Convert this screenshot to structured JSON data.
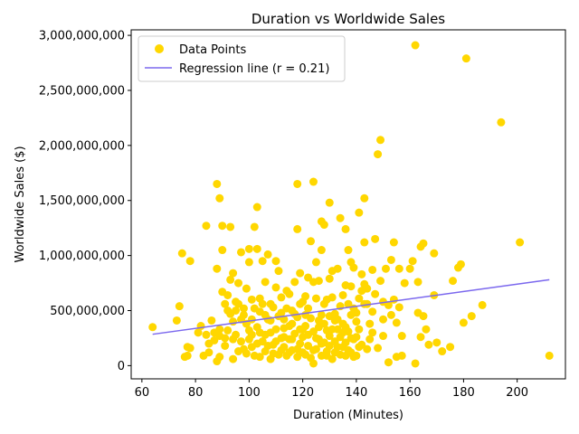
{
  "chart_data": {
    "type": "scatter",
    "title": "Duration vs Worldwide Sales",
    "xlabel": "Duration (Minutes)",
    "ylabel": "Worldwide Sales ($)",
    "xlim": [
      56,
      218
    ],
    "ylim": [
      -120000000,
      3050000000
    ],
    "xticks": [
      60,
      80,
      100,
      120,
      140,
      160,
      180,
      200
    ],
    "xtick_labels": [
      "60",
      "80",
      "100",
      "120",
      "140",
      "160",
      "180",
      "200"
    ],
    "yticks": [
      0,
      500000000,
      1000000000,
      1500000000,
      2000000000,
      2500000000,
      3000000000
    ],
    "ytick_labels": [
      "0",
      "500,000,000",
      "1,000,000,000",
      "1,500,000,000",
      "2,000,000,000",
      "2,500,000,000",
      "3,000,000,000"
    ],
    "grid": false,
    "legend_position": "top-left",
    "series": [
      {
        "name": "Data Points",
        "kind": "scatter",
        "color": "#FFD700",
        "points": [
          [
            64,
            350000000
          ],
          [
            73,
            410000000
          ],
          [
            74,
            540000000
          ],
          [
            75,
            1020000000
          ],
          [
            76,
            80000000
          ],
          [
            77,
            170000000
          ],
          [
            77,
            90000000
          ],
          [
            78,
            950000000
          ],
          [
            78,
            160000000
          ],
          [
            81,
            300000000
          ],
          [
            82,
            360000000
          ],
          [
            83,
            90000000
          ],
          [
            84,
            1270000000
          ],
          [
            84,
            280000000
          ],
          [
            85,
            200000000
          ],
          [
            85,
            120000000
          ],
          [
            86,
            410000000
          ],
          [
            87,
            300000000
          ],
          [
            88,
            880000000
          ],
          [
            88,
            1650000000
          ],
          [
            88,
            40000000
          ],
          [
            89,
            1520000000
          ],
          [
            89,
            270000000
          ],
          [
            89,
            80000000
          ],
          [
            90,
            1050000000
          ],
          [
            90,
            1270000000
          ],
          [
            90,
            670000000
          ],
          [
            91,
            560000000
          ],
          [
            91,
            250000000
          ],
          [
            92,
            320000000
          ],
          [
            93,
            780000000
          ],
          [
            93,
            1260000000
          ],
          [
            94,
            840000000
          ],
          [
            94,
            400000000
          ],
          [
            94,
            60000000
          ],
          [
            95,
            500000000
          ],
          [
            96,
            750000000
          ],
          [
            97,
            1030000000
          ],
          [
            98,
            520000000
          ],
          [
            99,
            700000000
          ],
          [
            100,
            1060000000
          ],
          [
            100,
            940000000
          ],
          [
            101,
            600000000
          ],
          [
            101,
            170000000
          ],
          [
            102,
            1260000000
          ],
          [
            103,
            1440000000
          ],
          [
            103,
            1060000000
          ],
          [
            104,
            490000000
          ],
          [
            104,
            80000000
          ],
          [
            105,
            950000000
          ],
          [
            106,
            760000000
          ],
          [
            107,
            1010000000
          ],
          [
            108,
            560000000
          ],
          [
            108,
            300000000
          ],
          [
            110,
            950000000
          ],
          [
            111,
            860000000
          ],
          [
            112,
            620000000
          ],
          [
            113,
            420000000
          ],
          [
            114,
            680000000
          ],
          [
            115,
            240000000
          ],
          [
            116,
            500000000
          ],
          [
            117,
            760000000
          ],
          [
            118,
            1650000000
          ],
          [
            118,
            1240000000
          ],
          [
            119,
            840000000
          ],
          [
            120,
            580000000
          ],
          [
            121,
            360000000
          ],
          [
            122,
            800000000
          ],
          [
            123,
            1130000000
          ],
          [
            124,
            1670000000
          ],
          [
            124,
            20000000
          ],
          [
            125,
            940000000
          ],
          [
            126,
            770000000
          ],
          [
            127,
            1050000000
          ],
          [
            127,
            1310000000
          ],
          [
            128,
            1280000000
          ],
          [
            129,
            600000000
          ],
          [
            130,
            1480000000
          ],
          [
            130,
            450000000
          ],
          [
            131,
            860000000
          ],
          [
            132,
            220000000
          ],
          [
            133,
            880000000
          ],
          [
            134,
            1340000000
          ],
          [
            135,
            640000000
          ],
          [
            136,
            1240000000
          ],
          [
            136,
            350000000
          ],
          [
            137,
            1050000000
          ],
          [
            138,
            940000000
          ],
          [
            138,
            720000000
          ],
          [
            139,
            890000000
          ],
          [
            140,
            480000000
          ],
          [
            141,
            1390000000
          ],
          [
            142,
            830000000
          ],
          [
            143,
            1120000000
          ],
          [
            143,
            1520000000
          ],
          [
            144,
            700000000
          ],
          [
            145,
            380000000
          ],
          [
            146,
            870000000
          ],
          [
            147,
            1150000000
          ],
          [
            148,
            1920000000
          ],
          [
            149,
            2050000000
          ],
          [
            149,
            770000000
          ],
          [
            150,
            420000000
          ],
          [
            151,
            880000000
          ],
          [
            152,
            30000000
          ],
          [
            153,
            960000000
          ],
          [
            154,
            1120000000
          ],
          [
            155,
            390000000
          ],
          [
            156,
            530000000
          ],
          [
            156,
            880000000
          ],
          [
            157,
            90000000
          ],
          [
            158,
            750000000
          ],
          [
            160,
            880000000
          ],
          [
            161,
            950000000
          ],
          [
            162,
            2910000000
          ],
          [
            162,
            20000000
          ],
          [
            163,
            480000000
          ],
          [
            163,
            760000000
          ],
          [
            164,
            1080000000
          ],
          [
            165,
            1110000000
          ],
          [
            165,
            450000000
          ],
          [
            166,
            330000000
          ],
          [
            167,
            190000000
          ],
          [
            169,
            1020000000
          ],
          [
            169,
            640000000
          ],
          [
            170,
            210000000
          ],
          [
            172,
            130000000
          ],
          [
            175,
            170000000
          ],
          [
            176,
            770000000
          ],
          [
            178,
            890000000
          ],
          [
            179,
            920000000
          ],
          [
            180,
            390000000
          ],
          [
            181,
            2790000000
          ],
          [
            183,
            450000000
          ],
          [
            187,
            550000000
          ],
          [
            194,
            2210000000
          ],
          [
            201,
            1120000000
          ],
          [
            212,
            90000000
          ],
          [
            98,
            150000000
          ],
          [
            99,
            380000000
          ],
          [
            101,
            280000000
          ],
          [
            102,
            90000000
          ],
          [
            103,
            350000000
          ],
          [
            105,
            220000000
          ],
          [
            106,
            130000000
          ],
          [
            107,
            420000000
          ],
          [
            108,
            60000000
          ],
          [
            109,
            190000000
          ],
          [
            110,
            330000000
          ],
          [
            111,
            100000000
          ],
          [
            112,
            250000000
          ],
          [
            113,
            170000000
          ],
          [
            114,
            90000000
          ],
          [
            115,
            360000000
          ],
          [
            116,
            140000000
          ],
          [
            117,
            290000000
          ],
          [
            118,
            80000000
          ],
          [
            119,
            200000000
          ],
          [
            120,
            120000000
          ],
          [
            121,
            460000000
          ],
          [
            122,
            180000000
          ],
          [
            123,
            70000000
          ],
          [
            124,
            310000000
          ],
          [
            125,
            150000000
          ],
          [
            126,
            240000000
          ],
          [
            127,
            90000000
          ],
          [
            128,
            380000000
          ],
          [
            129,
            130000000
          ],
          [
            130,
            270000000
          ],
          [
            131,
            60000000
          ],
          [
            132,
            410000000
          ],
          [
            133,
            170000000
          ],
          [
            134,
            100000000
          ],
          [
            135,
            300000000
          ],
          [
            136,
            210000000
          ],
          [
            137,
            140000000
          ],
          [
            138,
            460000000
          ],
          [
            139,
            80000000
          ],
          [
            140,
            260000000
          ],
          [
            141,
            330000000
          ],
          [
            142,
            190000000
          ],
          [
            143,
            560000000
          ],
          [
            144,
            150000000
          ],
          [
            145,
            240000000
          ],
          [
            146,
            300000000
          ],
          [
            147,
            650000000
          ],
          [
            148,
            160000000
          ],
          [
            150,
            270000000
          ],
          [
            152,
            550000000
          ],
          [
            154,
            600000000
          ],
          [
            155,
            80000000
          ],
          [
            157,
            270000000
          ],
          [
            164,
            260000000
          ],
          [
            92,
            640000000
          ],
          [
            93,
            470000000
          ],
          [
            95,
            280000000
          ],
          [
            96,
            130000000
          ],
          [
            97,
            420000000
          ],
          [
            95,
            580000000
          ],
          [
            100,
            320000000
          ],
          [
            102,
            520000000
          ],
          [
            104,
            610000000
          ],
          [
            106,
            460000000
          ],
          [
            109,
            530000000
          ],
          [
            112,
            480000000
          ],
          [
            115,
            650000000
          ],
          [
            119,
            560000000
          ],
          [
            121,
            630000000
          ],
          [
            125,
            610000000
          ],
          [
            128,
            560000000
          ],
          [
            131,
            620000000
          ],
          [
            134,
            540000000
          ],
          [
            139,
            520000000
          ],
          [
            141,
            610000000
          ],
          [
            144,
            560000000
          ],
          [
            146,
            490000000
          ],
          [
            150,
            580000000
          ],
          [
            153,
            460000000
          ],
          [
            118,
            440000000
          ],
          [
            120,
            330000000
          ],
          [
            122,
            520000000
          ],
          [
            126,
            410000000
          ],
          [
            129,
            320000000
          ],
          [
            132,
            470000000
          ],
          [
            135,
            380000000
          ],
          [
            137,
            560000000
          ],
          [
            140,
            400000000
          ],
          [
            142,
            680000000
          ],
          [
            110,
            710000000
          ],
          [
            113,
            260000000
          ],
          [
            116,
            380000000
          ],
          [
            124,
            760000000
          ],
          [
            127,
            200000000
          ],
          [
            130,
            790000000
          ],
          [
            133,
            330000000
          ],
          [
            136,
            730000000
          ],
          [
            138,
            250000000
          ],
          [
            143,
            740000000
          ],
          [
            87,
            230000000
          ],
          [
            89,
            330000000
          ],
          [
            91,
            180000000
          ],
          [
            92,
            500000000
          ],
          [
            94,
            240000000
          ],
          [
            96,
            560000000
          ],
          [
            97,
            220000000
          ],
          [
            98,
            460000000
          ],
          [
            99,
            110000000
          ],
          [
            100,
            240000000
          ],
          [
            101,
            420000000
          ],
          [
            103,
            200000000
          ],
          [
            104,
            300000000
          ],
          [
            105,
            560000000
          ],
          [
            106,
            280000000
          ],
          [
            107,
            180000000
          ],
          [
            108,
            410000000
          ],
          [
            109,
            110000000
          ],
          [
            110,
            220000000
          ],
          [
            111,
            450000000
          ],
          [
            112,
            140000000
          ],
          [
            113,
            340000000
          ],
          [
            114,
            520000000
          ],
          [
            115,
            120000000
          ],
          [
            116,
            240000000
          ],
          [
            117,
            470000000
          ],
          [
            118,
            150000000
          ],
          [
            119,
            330000000
          ],
          [
            120,
            260000000
          ],
          [
            121,
            100000000
          ],
          [
            122,
            280000000
          ],
          [
            123,
            430000000
          ],
          [
            124,
            140000000
          ],
          [
            125,
            250000000
          ],
          [
            126,
            350000000
          ],
          [
            127,
            460000000
          ],
          [
            128,
            210000000
          ],
          [
            129,
            90000000
          ],
          [
            130,
            180000000
          ],
          [
            131,
            330000000
          ],
          [
            132,
            120000000
          ],
          [
            133,
            420000000
          ],
          [
            134,
            260000000
          ],
          [
            135,
            170000000
          ],
          [
            136,
            90000000
          ],
          [
            137,
            310000000
          ],
          [
            138,
            120000000
          ],
          [
            139,
            240000000
          ],
          [
            140,
            90000000
          ],
          [
            141,
            170000000
          ]
        ]
      },
      {
        "name": "Regression line (r = 0.21)",
        "kind": "line",
        "color": "#7B68EE",
        "points": [
          [
            64,
            285000000
          ],
          [
            212,
            780000000
          ]
        ]
      }
    ]
  }
}
